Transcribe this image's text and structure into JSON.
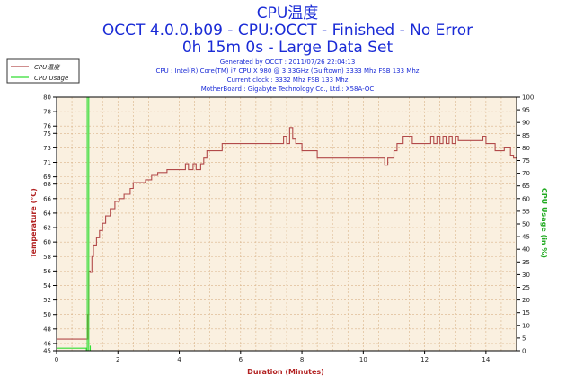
{
  "chart_data": {
    "type": "line",
    "title_lines": [
      "CPU温度",
      "OCCT 4.0.0.b09 - CPU:OCCT - Finished - No Error",
      "0h 15m 0s - Large Data Set"
    ],
    "info_lines": [
      "Generated by OCCT : 2011/07/26 22:04:13",
      "CPU : Intel(R) Core(TM) i7 CPU X 980 @ 3.33GHz (Gulftown) 3333 Mhz FSB 133 Mhz",
      "Current clock : 3332 Mhz FSB 133 Mhz",
      "MotherBoard : Gigabyte Technology Co., Ltd.: X58A-OC"
    ],
    "xlabel": "Duration (Minutes)",
    "ylabel_left": "Temperature (°C)",
    "ylabel_right": "CPU Usage (in %)",
    "xlim": [
      0,
      15
    ],
    "ylim_left": [
      45,
      80
    ],
    "ylim_right": [
      0,
      100
    ],
    "x_ticks": [
      0,
      2,
      4,
      6,
      8,
      10,
      12,
      14
    ],
    "y_ticks_left": [
      45,
      46,
      48,
      50,
      52,
      54,
      56,
      58,
      60,
      62,
      64,
      66,
      68,
      69,
      71,
      73,
      75,
      76,
      78,
      80
    ],
    "y_ticks_right": [
      0,
      5,
      10,
      15,
      20,
      25,
      30,
      35,
      40,
      45,
      50,
      55,
      60,
      65,
      70,
      75,
      80,
      85,
      90,
      95,
      100
    ],
    "grid": true,
    "legend_position": "top-left",
    "colors": {
      "background": "#faf0e0",
      "grid": "#d9b48a",
      "temperature": "#b24a4a",
      "usage": "#33dd33",
      "title": "#1a2bd6"
    },
    "series": [
      {
        "name": "CPU温度",
        "axis": "left",
        "color": "#b24a4a",
        "points": [
          [
            0,
            46.6
          ],
          [
            1.0,
            46.6
          ],
          [
            1.02,
            50
          ],
          [
            1.05,
            56
          ],
          [
            1.1,
            55.8
          ],
          [
            1.15,
            58
          ],
          [
            1.2,
            59.6
          ],
          [
            1.3,
            60.6
          ],
          [
            1.4,
            61.6
          ],
          [
            1.5,
            62.6
          ],
          [
            1.6,
            63.6
          ],
          [
            1.75,
            64.6
          ],
          [
            1.9,
            65.6
          ],
          [
            2.05,
            66.0
          ],
          [
            2.2,
            66.6
          ],
          [
            2.4,
            67.4
          ],
          [
            2.5,
            68.2
          ],
          [
            2.8,
            68.2
          ],
          [
            2.9,
            68.6
          ],
          [
            3.1,
            69.2
          ],
          [
            3.3,
            69.6
          ],
          [
            3.6,
            70.0
          ],
          [
            4.1,
            70.0
          ],
          [
            4.2,
            70.8
          ],
          [
            4.3,
            70.0
          ],
          [
            4.45,
            70.8
          ],
          [
            4.55,
            70.0
          ],
          [
            4.7,
            70.8
          ],
          [
            4.8,
            71.6
          ],
          [
            4.9,
            72.6
          ],
          [
            5.3,
            72.6
          ],
          [
            5.4,
            73.6
          ],
          [
            7.3,
            73.6
          ],
          [
            7.4,
            74.6
          ],
          [
            7.5,
            73.6
          ],
          [
            7.6,
            75.8
          ],
          [
            7.7,
            74.2
          ],
          [
            7.8,
            73.6
          ],
          [
            7.9,
            73.6
          ],
          [
            8.0,
            72.6
          ],
          [
            8.4,
            72.6
          ],
          [
            8.5,
            71.6
          ],
          [
            10.4,
            71.6
          ],
          [
            10.6,
            71.6
          ],
          [
            10.7,
            70.6
          ],
          [
            10.8,
            71.6
          ],
          [
            11.0,
            72.6
          ],
          [
            11.1,
            73.6
          ],
          [
            11.3,
            74.6
          ],
          [
            11.5,
            74.6
          ],
          [
            11.6,
            73.6
          ],
          [
            12.1,
            73.6
          ],
          [
            12.2,
            74.6
          ],
          [
            12.3,
            73.6
          ],
          [
            12.4,
            74.6
          ],
          [
            12.5,
            73.6
          ],
          [
            12.6,
            74.6
          ],
          [
            12.7,
            73.6
          ],
          [
            12.8,
            74.6
          ],
          [
            12.9,
            73.6
          ],
          [
            13.0,
            74.6
          ],
          [
            13.1,
            74.0
          ],
          [
            13.8,
            74.0
          ],
          [
            13.9,
            74.6
          ],
          [
            14.0,
            73.6
          ],
          [
            14.2,
            73.6
          ],
          [
            14.3,
            72.6
          ],
          [
            14.5,
            72.6
          ],
          [
            14.6,
            73.0
          ],
          [
            14.8,
            72.0
          ],
          [
            14.9,
            71.6
          ],
          [
            15.0,
            71.6
          ]
        ]
      },
      {
        "name": "CPU Usage",
        "axis": "right",
        "color": "#33dd33",
        "points": [
          [
            0,
            1
          ],
          [
            0.95,
            1
          ],
          [
            0.97,
            0
          ],
          [
            1.0,
            100
          ],
          [
            1.02,
            100
          ],
          [
            1.05,
            0
          ],
          [
            1.1,
            2
          ]
        ]
      }
    ]
  }
}
